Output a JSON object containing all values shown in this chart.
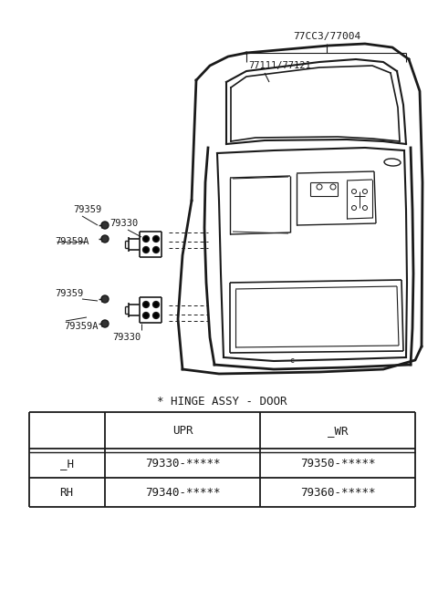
{
  "bg_color": "#ffffff",
  "line_color": "#1a1a1a",
  "title_label": "* HINGE ASSY - DOOR",
  "table_header_row": [
    "",
    "UPR",
    "_WR"
  ],
  "table_row1": [
    "_H",
    "79330-*****",
    "79350-*****"
  ],
  "table_row2": [
    "RH",
    "79340-*****",
    "79360-*****"
  ],
  "part_label_77003": "77CC3/77004",
  "part_label_77111": "77111/77121",
  "part_label_79359": "79359",
  "part_label_79330": "79330",
  "part_label_79359A": "79359A"
}
